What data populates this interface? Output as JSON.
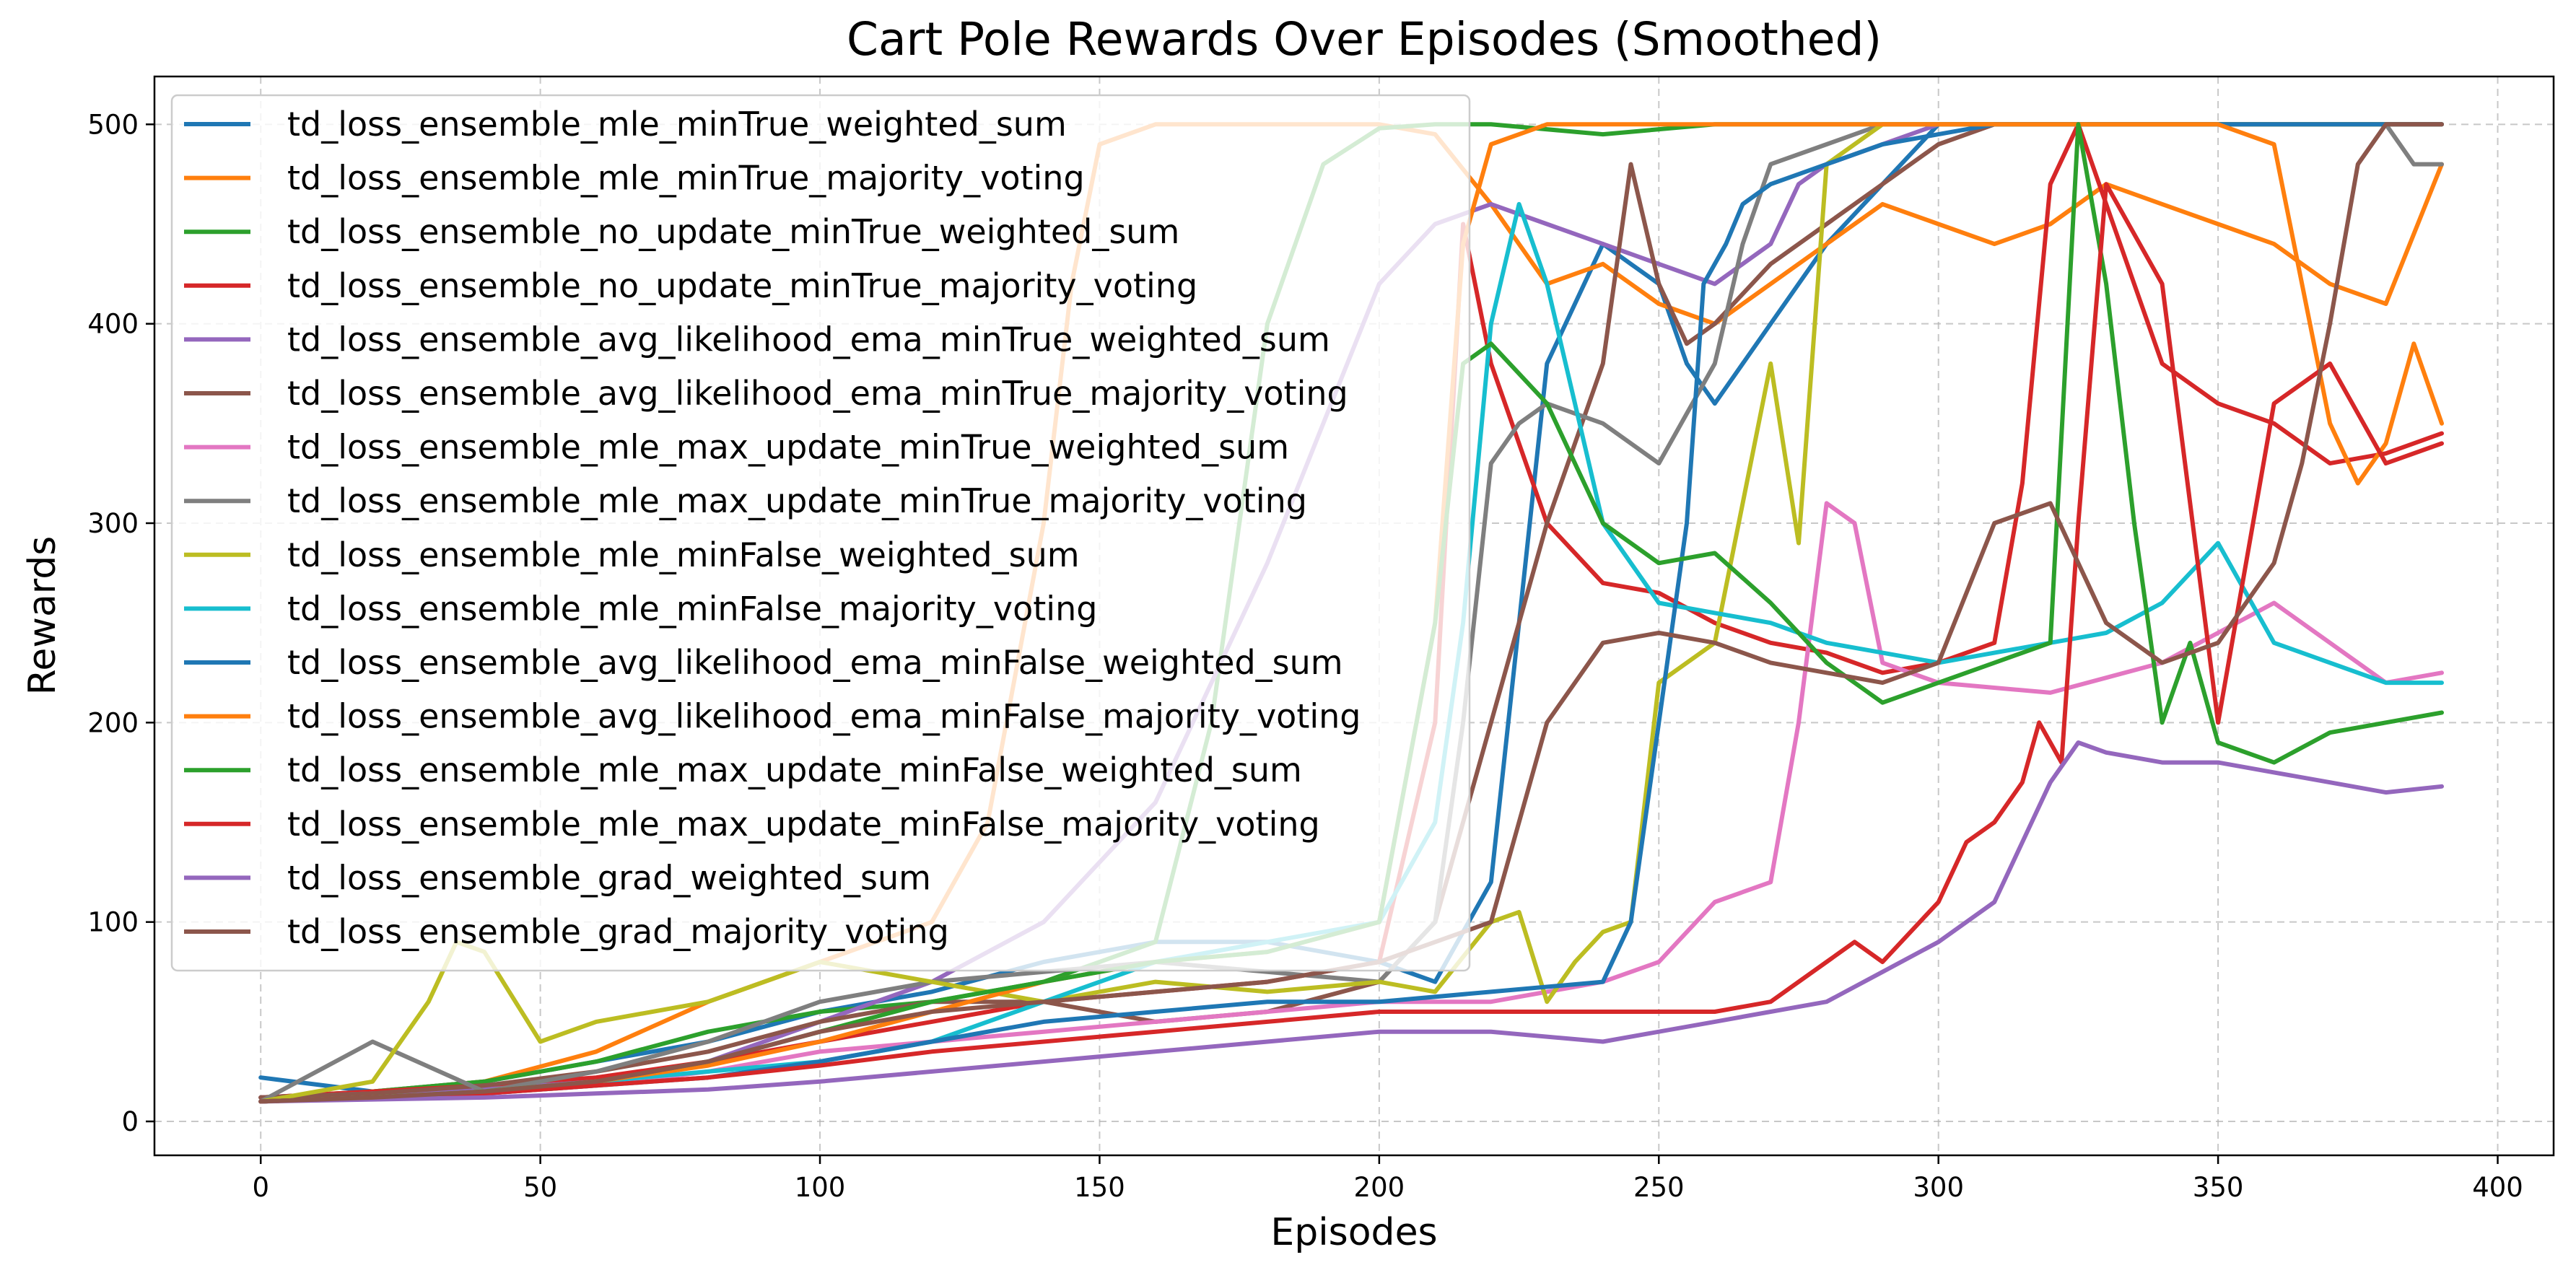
{
  "chart_data": {
    "type": "line",
    "title": "Cart Pole Rewards Over Episodes (Smoothed)",
    "xlabel": "Episodes",
    "ylabel": "Rewards",
    "xlim": [
      -19,
      410
    ],
    "ylim": [
      -17,
      524
    ],
    "xticks": [
      0,
      50,
      100,
      150,
      200,
      250,
      300,
      350,
      400
    ],
    "yticks": [
      0,
      100,
      200,
      300,
      400,
      500
    ],
    "grid": true,
    "legend": "upper-left",
    "series": [
      {
        "name": "td_loss_ensemble_mle_minTrue_weighted_sum",
        "color": "#1f77b4",
        "x": [
          0,
          20,
          40,
          60,
          80,
          100,
          120,
          140,
          160,
          180,
          200,
          210,
          220,
          225,
          230,
          240,
          245,
          250,
          255,
          260,
          270,
          280,
          290,
          300,
          310,
          320,
          330,
          340,
          350,
          360,
          370,
          380,
          390
        ],
        "y": [
          22,
          15,
          20,
          30,
          40,
          55,
          65,
          80,
          90,
          90,
          80,
          70,
          120,
          250,
          380,
          440,
          430,
          420,
          380,
          360,
          400,
          440,
          470,
          500,
          500,
          500,
          500,
          500,
          500,
          500,
          500,
          500,
          500
        ]
      },
      {
        "name": "td_loss_ensemble_mle_minTrue_majority_voting",
        "color": "#ff7f0e",
        "x": [
          0,
          20,
          40,
          60,
          80,
          100,
          120,
          130,
          140,
          145,
          150,
          160,
          180,
          200,
          210,
          220,
          230,
          240,
          250,
          260,
          270,
          280,
          290,
          300,
          310,
          320,
          330,
          340,
          350,
          360,
          370,
          380,
          390
        ],
        "y": [
          12,
          15,
          20,
          35,
          60,
          80,
          100,
          150,
          300,
          420,
          490,
          500,
          500,
          500,
          495,
          460,
          420,
          430,
          410,
          400,
          420,
          440,
          460,
          450,
          440,
          450,
          470,
          460,
          450,
          440,
          420,
          410,
          480
        ]
      },
      {
        "name": "td_loss_ensemble_no_update_minTrue_weighted_sum",
        "color": "#2ca02c",
        "x": [
          0,
          20,
          40,
          60,
          80,
          100,
          120,
          140,
          160,
          170,
          180,
          190,
          200,
          210,
          220,
          240,
          260,
          280,
          300,
          320,
          340,
          360,
          380,
          390
        ],
        "y": [
          12,
          15,
          20,
          30,
          45,
          55,
          60,
          70,
          90,
          200,
          400,
          480,
          498,
          500,
          500,
          495,
          500,
          500,
          500,
          500,
          500,
          500,
          500,
          500
        ]
      },
      {
        "name": "td_loss_ensemble_no_update_minTrue_majority_voting",
        "color": "#d62728",
        "x": [
          0,
          20,
          40,
          60,
          80,
          100,
          120,
          140,
          160,
          180,
          200,
          210,
          215,
          220,
          230,
          240,
          250,
          260,
          270,
          280,
          290,
          300,
          310,
          315,
          320,
          325,
          330,
          340,
          350,
          360,
          370,
          380,
          390
        ],
        "y": [
          12,
          15,
          18,
          22,
          30,
          40,
          50,
          60,
          65,
          70,
          80,
          200,
          450,
          380,
          300,
          270,
          265,
          250,
          240,
          235,
          225,
          230,
          240,
          320,
          470,
          500,
          460,
          380,
          360,
          350,
          330,
          335,
          345
        ]
      },
      {
        "name": "td_loss_ensemble_avg_likelihood_ema_minTrue_weighted_sum",
        "color": "#9467bd",
        "x": [
          0,
          20,
          40,
          60,
          80,
          100,
          120,
          140,
          160,
          170,
          180,
          190,
          200,
          210,
          220,
          230,
          240,
          250,
          260,
          270,
          275,
          280,
          290,
          300,
          320,
          340,
          360,
          380,
          390
        ],
        "y": [
          12,
          14,
          16,
          20,
          30,
          50,
          70,
          100,
          160,
          220,
          280,
          350,
          420,
          450,
          460,
          450,
          440,
          430,
          420,
          440,
          470,
          480,
          490,
          500,
          500,
          500,
          500,
          500,
          500
        ]
      },
      {
        "name": "td_loss_ensemble_avg_likelihood_ema_minTrue_majority_voting",
        "color": "#8c564b",
        "x": [
          0,
          20,
          40,
          60,
          80,
          100,
          120,
          140,
          160,
          180,
          200,
          210,
          220,
          230,
          240,
          245,
          250,
          255,
          260,
          270,
          280,
          290,
          300,
          310,
          320,
          330,
          340,
          350,
          360,
          370,
          380,
          390
        ],
        "y": [
          12,
          14,
          18,
          25,
          35,
          50,
          60,
          60,
          50,
          55,
          70,
          100,
          200,
          300,
          380,
          480,
          420,
          390,
          400,
          430,
          450,
          470,
          490,
          500,
          500,
          500,
          500,
          500,
          500,
          500,
          500,
          500
        ]
      },
      {
        "name": "td_loss_ensemble_mle_max_update_minTrue_weighted_sum",
        "color": "#e377c2",
        "x": [
          0,
          20,
          40,
          60,
          80,
          100,
          120,
          140,
          160,
          180,
          200,
          220,
          240,
          250,
          260,
          270,
          275,
          280,
          285,
          290,
          300,
          320,
          340,
          360,
          380,
          390
        ],
        "y": [
          10,
          12,
          14,
          18,
          25,
          35,
          40,
          45,
          50,
          55,
          60,
          60,
          70,
          80,
          110,
          120,
          200,
          310,
          300,
          230,
          220,
          215,
          230,
          260,
          220,
          225
        ]
      },
      {
        "name": "td_loss_ensemble_mle_max_update_minTrue_majority_voting",
        "color": "#7f7f7f",
        "x": [
          0,
          20,
          40,
          60,
          80,
          100,
          120,
          140,
          160,
          180,
          200,
          210,
          215,
          220,
          225,
          230,
          240,
          250,
          260,
          265,
          270,
          280,
          290,
          300,
          320,
          340,
          360,
          380,
          385,
          390
        ],
        "y": [
          10,
          40,
          15,
          25,
          40,
          60,
          70,
          75,
          80,
          75,
          70,
          100,
          200,
          330,
          350,
          360,
          350,
          330,
          380,
          440,
          480,
          490,
          500,
          500,
          500,
          500,
          500,
          500,
          480,
          480
        ]
      },
      {
        "name": "td_loss_ensemble_mle_minFalse_weighted_sum",
        "color": "#bcbd22",
        "x": [
          0,
          20,
          30,
          35,
          40,
          50,
          60,
          80,
          100,
          120,
          140,
          160,
          180,
          200,
          210,
          220,
          225,
          230,
          235,
          240,
          245,
          250,
          260,
          270,
          275,
          280,
          290,
          300,
          320,
          340,
          360,
          380,
          390
        ],
        "y": [
          10,
          20,
          60,
          90,
          85,
          40,
          50,
          60,
          80,
          70,
          60,
          70,
          65,
          70,
          65,
          100,
          105,
          60,
          80,
          95,
          100,
          220,
          240,
          380,
          290,
          480,
          500,
          500,
          500,
          500,
          500,
          500,
          500
        ]
      },
      {
        "name": "td_loss_ensemble_mle_minFalse_majority_voting",
        "color": "#17becf",
        "x": [
          0,
          20,
          40,
          60,
          80,
          100,
          120,
          140,
          160,
          180,
          200,
          210,
          215,
          220,
          225,
          230,
          240,
          250,
          260,
          270,
          280,
          290,
          300,
          310,
          320,
          330,
          340,
          350,
          360,
          370,
          380,
          390
        ],
        "y": [
          10,
          12,
          15,
          20,
          25,
          30,
          40,
          60,
          80,
          90,
          100,
          150,
          250,
          400,
          460,
          420,
          300,
          260,
          255,
          250,
          240,
          235,
          230,
          235,
          240,
          245,
          260,
          290,
          240,
          230,
          220,
          220
        ]
      },
      {
        "name": "td_loss_ensemble_avg_likelihood_ema_minFalse_weighted_sum",
        "color": "#1f77b4",
        "x": [
          0,
          20,
          40,
          60,
          80,
          100,
          120,
          140,
          160,
          180,
          200,
          220,
          240,
          245,
          250,
          255,
          258,
          262,
          265,
          270,
          280,
          290,
          300,
          310,
          320,
          340,
          360,
          380,
          390
        ],
        "y": [
          10,
          12,
          14,
          18,
          22,
          30,
          40,
          50,
          55,
          60,
          60,
          65,
          70,
          100,
          200,
          300,
          420,
          440,
          460,
          470,
          480,
          490,
          495,
          500,
          500,
          500,
          500,
          500,
          500
        ]
      },
      {
        "name": "td_loss_ensemble_avg_likelihood_ema_minFalse_majority_voting",
        "color": "#ff7f0e",
        "x": [
          0,
          20,
          40,
          60,
          80,
          100,
          120,
          140,
          160,
          180,
          200,
          210,
          215,
          220,
          230,
          240,
          250,
          260,
          270,
          280,
          290,
          300,
          310,
          320,
          330,
          340,
          350,
          360,
          370,
          375,
          380,
          385,
          390
        ],
        "y": [
          10,
          12,
          15,
          20,
          28,
          40,
          55,
          70,
          80,
          85,
          100,
          250,
          440,
          490,
          500,
          500,
          500,
          500,
          500,
          500,
          500,
          500,
          500,
          500,
          500,
          500,
          500,
          490,
          350,
          320,
          340,
          390,
          350
        ]
      },
      {
        "name": "td_loss_ensemble_mle_max_update_minFalse_weighted_sum",
        "color": "#2ca02c",
        "x": [
          0,
          20,
          40,
          60,
          80,
          100,
          120,
          140,
          160,
          180,
          200,
          210,
          215,
          220,
          230,
          240,
          250,
          260,
          270,
          280,
          290,
          300,
          310,
          320,
          325,
          330,
          335,
          340,
          345,
          350,
          360,
          370,
          380,
          390
        ],
        "y": [
          10,
          12,
          15,
          20,
          30,
          45,
          60,
          70,
          80,
          85,
          100,
          250,
          380,
          390,
          360,
          300,
          280,
          285,
          260,
          230,
          210,
          220,
          230,
          240,
          500,
          420,
          300,
          200,
          240,
          190,
          180,
          195,
          200,
          205
        ]
      },
      {
        "name": "td_loss_ensemble_mle_max_update_minFalse_majority_voting",
        "color": "#d62728",
        "x": [
          0,
          20,
          40,
          60,
          80,
          100,
          120,
          140,
          160,
          180,
          200,
          220,
          240,
          260,
          270,
          280,
          285,
          290,
          300,
          305,
          310,
          315,
          318,
          322,
          325,
          330,
          340,
          350,
          360,
          370,
          380,
          390
        ],
        "y": [
          10,
          12,
          14,
          18,
          22,
          28,
          35,
          40,
          45,
          50,
          55,
          55,
          55,
          55,
          60,
          80,
          90,
          80,
          110,
          140,
          150,
          170,
          200,
          180,
          300,
          470,
          420,
          200,
          360,
          380,
          330,
          340
        ]
      },
      {
        "name": "td_loss_ensemble_grad_weighted_sum",
        "color": "#9467bd",
        "x": [
          0,
          20,
          40,
          60,
          80,
          100,
          120,
          140,
          160,
          180,
          200,
          220,
          240,
          260,
          270,
          280,
          290,
          300,
          310,
          315,
          320,
          325,
          330,
          340,
          350,
          360,
          370,
          380,
          390
        ],
        "y": [
          10,
          11,
          12,
          14,
          16,
          20,
          25,
          30,
          35,
          40,
          45,
          45,
          40,
          50,
          55,
          60,
          75,
          90,
          110,
          140,
          170,
          190,
          185,
          180,
          180,
          175,
          170,
          165,
          168
        ]
      },
      {
        "name": "td_loss_ensemble_grad_majority_voting",
        "color": "#8c564b",
        "x": [
          0,
          20,
          40,
          60,
          80,
          100,
          120,
          140,
          160,
          180,
          200,
          220,
          230,
          240,
          250,
          260,
          270,
          280,
          290,
          300,
          310,
          320,
          330,
          340,
          350,
          355,
          360,
          365,
          370,
          375,
          380,
          390
        ],
        "y": [
          10,
          12,
          15,
          20,
          30,
          45,
          55,
          60,
          65,
          70,
          80,
          100,
          200,
          240,
          245,
          240,
          230,
          225,
          220,
          230,
          300,
          310,
          250,
          230,
          240,
          260,
          280,
          330,
          400,
          480,
          500,
          500
        ]
      }
    ]
  }
}
